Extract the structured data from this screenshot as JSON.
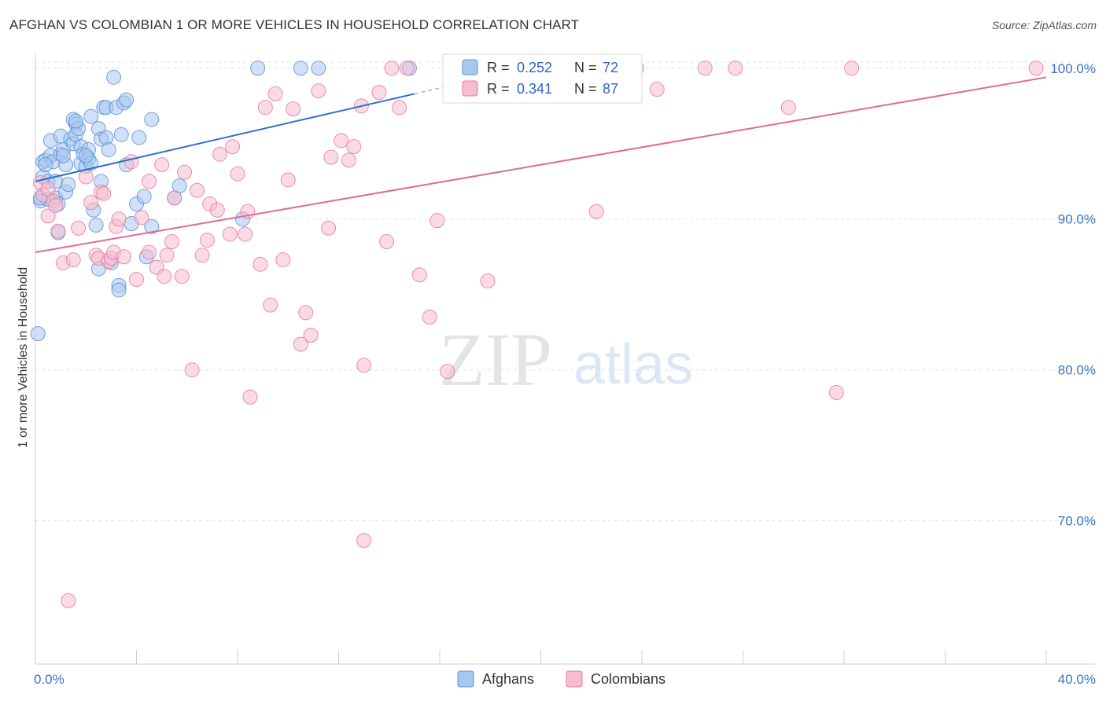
{
  "title": "AFGHAN VS COLOMBIAN 1 OR MORE VEHICLES IN HOUSEHOLD CORRELATION CHART",
  "source": "Source: ZipAtlas.com",
  "watermark": {
    "zip": "ZIP",
    "atlas": "atlas"
  },
  "chart_data": {
    "type": "scatter",
    "ylabel": "1 or more Vehicles in Household",
    "xlim": [
      0,
      40
    ],
    "ylim": [
      60.5,
      101.5
    ],
    "x_tick_labels": [
      "0.0%",
      "40.0%"
    ],
    "y_ticks": [
      70,
      80,
      90,
      100
    ],
    "y_tick_labels": [
      "70.0%",
      "80.0%",
      "90.0%",
      "100.0%"
    ],
    "grid": true,
    "legend_top": {
      "rows": [
        {
          "r_label": "R =",
          "r_value": "0.252",
          "n_label": "N =",
          "n_value": "72"
        },
        {
          "r_label": "R =",
          "r_value": "0.341",
          "n_label": "N =",
          "n_value": "87"
        }
      ]
    },
    "series": [
      {
        "name": "Afghans",
        "color": "#5b93d8",
        "fill": "#a9c7ee",
        "trend": {
          "x0": 0,
          "y0": 92.5,
          "x1": 15.0,
          "y1": 98.3,
          "dash_to_x": 16.5
        },
        "points": [
          [
            0.1,
            82.4
          ],
          [
            0.2,
            91.2
          ],
          [
            0.3,
            92.8
          ],
          [
            0.3,
            93.8
          ],
          [
            0.4,
            93.9
          ],
          [
            0.5,
            91.3
          ],
          [
            0.5,
            92.5
          ],
          [
            0.6,
            95.2
          ],
          [
            0.6,
            94.2
          ],
          [
            0.7,
            93.8
          ],
          [
            0.8,
            91.4
          ],
          [
            0.8,
            92.5
          ],
          [
            0.9,
            91.0
          ],
          [
            0.9,
            89.1
          ],
          [
            1.0,
            94.3
          ],
          [
            1.0,
            95.5
          ],
          [
            1.1,
            94.6
          ],
          [
            1.2,
            93.6
          ],
          [
            1.2,
            91.8
          ],
          [
            1.3,
            92.3
          ],
          [
            1.4,
            95.3
          ],
          [
            1.5,
            96.6
          ],
          [
            1.5,
            95.0
          ],
          [
            1.6,
            96.3
          ],
          [
            1.6,
            95.6
          ],
          [
            1.7,
            96.0
          ],
          [
            1.8,
            94.8
          ],
          [
            1.8,
            93.7
          ],
          [
            1.9,
            94.3
          ],
          [
            2.0,
            93.5
          ],
          [
            2.1,
            94.6
          ],
          [
            2.1,
            94.0
          ],
          [
            2.2,
            93.7
          ],
          [
            2.2,
            96.8
          ],
          [
            2.3,
            90.6
          ],
          [
            2.4,
            89.6
          ],
          [
            2.5,
            86.7
          ],
          [
            2.5,
            96.0
          ],
          [
            2.6,
            95.3
          ],
          [
            2.6,
            92.5
          ],
          [
            2.7,
            97.4
          ],
          [
            2.8,
            95.4
          ],
          [
            2.8,
            97.4
          ],
          [
            2.9,
            94.6
          ],
          [
            3.0,
            87.1
          ],
          [
            3.1,
            99.4
          ],
          [
            3.2,
            97.4
          ],
          [
            3.3,
            85.6
          ],
          [
            3.3,
            85.3
          ],
          [
            3.4,
            95.6
          ],
          [
            3.5,
            97.7
          ],
          [
            3.6,
            93.6
          ],
          [
            3.6,
            97.9
          ],
          [
            3.8,
            89.7
          ],
          [
            4.0,
            91.0
          ],
          [
            4.1,
            95.4
          ],
          [
            4.3,
            91.5
          ],
          [
            4.4,
            87.5
          ],
          [
            4.6,
            89.5
          ],
          [
            4.6,
            96.6
          ],
          [
            5.5,
            91.4
          ],
          [
            5.7,
            92.2
          ],
          [
            8.2,
            90.0
          ],
          [
            8.8,
            100.0
          ],
          [
            10.5,
            100.0
          ],
          [
            11.2,
            100.0
          ],
          [
            14.8,
            100.0
          ],
          [
            1.6,
            96.5
          ],
          [
            2.0,
            94.2
          ],
          [
            0.4,
            93.6
          ],
          [
            1.1,
            94.2
          ],
          [
            0.2,
            91.4
          ]
        ]
      },
      {
        "name": "Colombians",
        "color": "#e77aa0",
        "fill": "#f6bdd0",
        "trend": {
          "x0": 0,
          "y0": 87.8,
          "x1": 40,
          "y1": 99.4
        },
        "points": [
          [
            0.2,
            92.4
          ],
          [
            0.3,
            91.6
          ],
          [
            0.5,
            92.0
          ],
          [
            0.5,
            90.2
          ],
          [
            0.7,
            91.2
          ],
          [
            0.8,
            90.9
          ],
          [
            0.9,
            89.2
          ],
          [
            1.1,
            87.1
          ],
          [
            1.3,
            64.7
          ],
          [
            1.5,
            87.3
          ],
          [
            1.7,
            89.4
          ],
          [
            2.0,
            92.8
          ],
          [
            2.2,
            91.1
          ],
          [
            2.4,
            87.6
          ],
          [
            2.5,
            87.4
          ],
          [
            2.6,
            91.8
          ],
          [
            2.7,
            91.7
          ],
          [
            2.9,
            87.2
          ],
          [
            3.0,
            87.4
          ],
          [
            3.1,
            87.8
          ],
          [
            3.2,
            89.5
          ],
          [
            3.3,
            90.0
          ],
          [
            3.5,
            87.5
          ],
          [
            3.8,
            93.8
          ],
          [
            4.0,
            86.0
          ],
          [
            4.2,
            90.1
          ],
          [
            4.5,
            87.8
          ],
          [
            4.5,
            92.5
          ],
          [
            4.8,
            86.8
          ],
          [
            5.0,
            93.6
          ],
          [
            5.1,
            86.2
          ],
          [
            5.2,
            87.6
          ],
          [
            5.4,
            88.5
          ],
          [
            5.5,
            91.4
          ],
          [
            5.8,
            86.2
          ],
          [
            5.9,
            93.1
          ],
          [
            6.2,
            80.0
          ],
          [
            6.4,
            91.9
          ],
          [
            6.6,
            87.6
          ],
          [
            6.8,
            88.6
          ],
          [
            6.9,
            91.0
          ],
          [
            7.2,
            90.6
          ],
          [
            7.3,
            94.3
          ],
          [
            7.7,
            89.0
          ],
          [
            7.8,
            94.8
          ],
          [
            8.0,
            93.0
          ],
          [
            8.3,
            89.0
          ],
          [
            8.4,
            90.5
          ],
          [
            8.5,
            78.2
          ],
          [
            8.9,
            87.0
          ],
          [
            9.1,
            97.4
          ],
          [
            9.3,
            84.3
          ],
          [
            9.5,
            98.3
          ],
          [
            9.8,
            87.3
          ],
          [
            10.0,
            92.6
          ],
          [
            10.2,
            97.3
          ],
          [
            10.5,
            81.7
          ],
          [
            10.7,
            83.8
          ],
          [
            10.9,
            82.3
          ],
          [
            11.2,
            98.5
          ],
          [
            11.6,
            89.4
          ],
          [
            11.7,
            94.1
          ],
          [
            12.1,
            95.2
          ],
          [
            12.4,
            93.9
          ],
          [
            12.6,
            94.8
          ],
          [
            12.9,
            97.5
          ],
          [
            13.0,
            80.3
          ],
          [
            13.0,
            68.7
          ],
          [
            13.6,
            98.4
          ],
          [
            13.9,
            88.5
          ],
          [
            14.1,
            100.0
          ],
          [
            14.4,
            97.4
          ],
          [
            14.7,
            100.0
          ],
          [
            15.2,
            86.3
          ],
          [
            15.6,
            83.5
          ],
          [
            15.9,
            89.9
          ],
          [
            16.3,
            79.9
          ],
          [
            17.9,
            85.9
          ],
          [
            22.2,
            90.5
          ],
          [
            23.8,
            100.0
          ],
          [
            24.6,
            98.6
          ],
          [
            26.5,
            100.0
          ],
          [
            27.7,
            100.0
          ],
          [
            29.8,
            97.4
          ],
          [
            31.7,
            78.5
          ],
          [
            32.3,
            100.0
          ],
          [
            39.6,
            100.0
          ]
        ]
      }
    ]
  }
}
